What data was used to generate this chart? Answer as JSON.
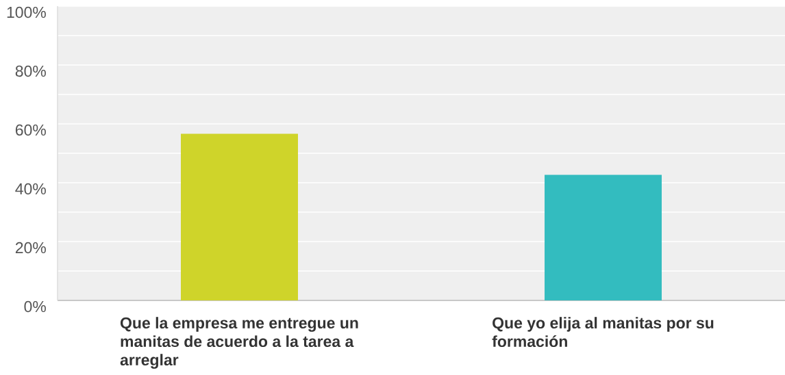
{
  "chart_data": {
    "type": "bar",
    "categories": [
      "Que la empresa me entregue un manitas de acuerdo a la tarea a arreglar",
      "Que yo elija al manitas por su formación"
    ],
    "values": [
      56.6,
      42.7
    ],
    "colors": [
      "#cfd42a",
      "#33bcbf"
    ],
    "ylim": [
      0,
      100
    ],
    "yticks": [
      {
        "value": 0,
        "label": "0%"
      },
      {
        "value": 10,
        "label": null
      },
      {
        "value": 20,
        "label": "20%"
      },
      {
        "value": 30,
        "label": null
      },
      {
        "value": 40,
        "label": "40%"
      },
      {
        "value": 50,
        "label": null
      },
      {
        "value": 60,
        "label": "60%"
      },
      {
        "value": 70,
        "label": null
      },
      {
        "value": 80,
        "label": "80%"
      },
      {
        "value": 90,
        "label": null
      },
      {
        "value": 100,
        "label": "100%"
      }
    ],
    "grid": "y"
  }
}
